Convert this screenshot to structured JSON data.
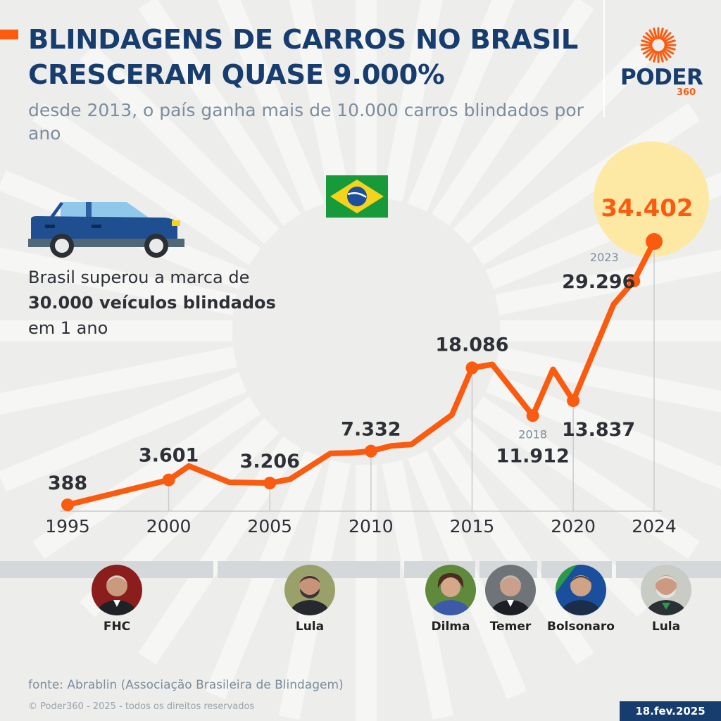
{
  "header": {
    "title_lines": [
      "BLINDAGENS DE CARROS NO BRASIL",
      "CRESCERAM QUASE 9.000%"
    ],
    "subtitle": "desde 2013, o país ganha mais de 10.000 carros blindados por ano"
  },
  "brand": {
    "name": "PODER",
    "number": "360"
  },
  "note": {
    "line1": "Brasil superou a marca de",
    "line2": "30.000 veículos blindados",
    "line3": "em 1 ano"
  },
  "chart_data": {
    "type": "line",
    "title": "BLINDAGENS DE CARROS NO BRASIL CRESCERAM QUASE 9.000%",
    "xlabel": "",
    "ylabel": "",
    "x": [
      1995,
      2000,
      2001,
      2003,
      2004,
      2005,
      2006,
      2008,
      2009,
      2010,
      2011,
      2012,
      2014,
      2015,
      2016,
      2018,
      2019,
      2020,
      2022,
      2023,
      2024
    ],
    "values": [
      388,
      3601,
      5402,
      3300,
      3250,
      3206,
      3701,
      7040,
      7090,
      7332,
      8002,
      8202,
      12003,
      18086,
      18520,
      11912,
      17890,
      13837,
      26300,
      29296,
      34402
    ],
    "ylim": [
      0,
      36000
    ],
    "xlim": [
      1995,
      2024
    ],
    "xticks": [
      "1995",
      "2000",
      "2005",
      "2010",
      "2015",
      "2020",
      "2024"
    ],
    "labels": [
      {
        "x": 1995,
        "y": 388,
        "text": "388"
      },
      {
        "x": 2000,
        "y": 3601,
        "text": "3.601"
      },
      {
        "x": 2005,
        "y": 3206,
        "text": "3.206"
      },
      {
        "x": 2010,
        "y": 7332,
        "text": "7.332"
      },
      {
        "x": 2015,
        "y": 18086,
        "text": "18.086"
      },
      {
        "x": 2018,
        "y": 11912,
        "text": "11.912",
        "year": "2018"
      },
      {
        "x": 2020,
        "y": 13837,
        "text": "13.837"
      },
      {
        "x": 2023,
        "y": 29296,
        "text": "29.296",
        "year": "2023"
      },
      {
        "x": 2024,
        "y": 34402,
        "text": "34.402"
      }
    ],
    "grid": false,
    "legend": "none",
    "series_color": "#fb5b0f",
    "highlight_color": "#fde9a4"
  },
  "presidents": [
    {
      "name": "FHC"
    },
    {
      "name": "Lula"
    },
    {
      "name": "Dilma"
    },
    {
      "name": "Temer"
    },
    {
      "name": "Bolsonaro"
    },
    {
      "name": "Lula"
    }
  ],
  "footer": {
    "source": "fonte: Abrablin (Associação Brasileira de Blindagem)",
    "copyright": "© Poder360 - 2025 - todos os direitos reservados",
    "date": "18.fev.2025"
  },
  "colors": {
    "accent": "#fb5b0f",
    "navy": "#173d6f",
    "subtitle": "#7c8d9c",
    "background": "#ededec"
  },
  "icons": [
    "sunburst-logo-icon",
    "brazil-flag-icon",
    "armored-car-icon"
  ]
}
